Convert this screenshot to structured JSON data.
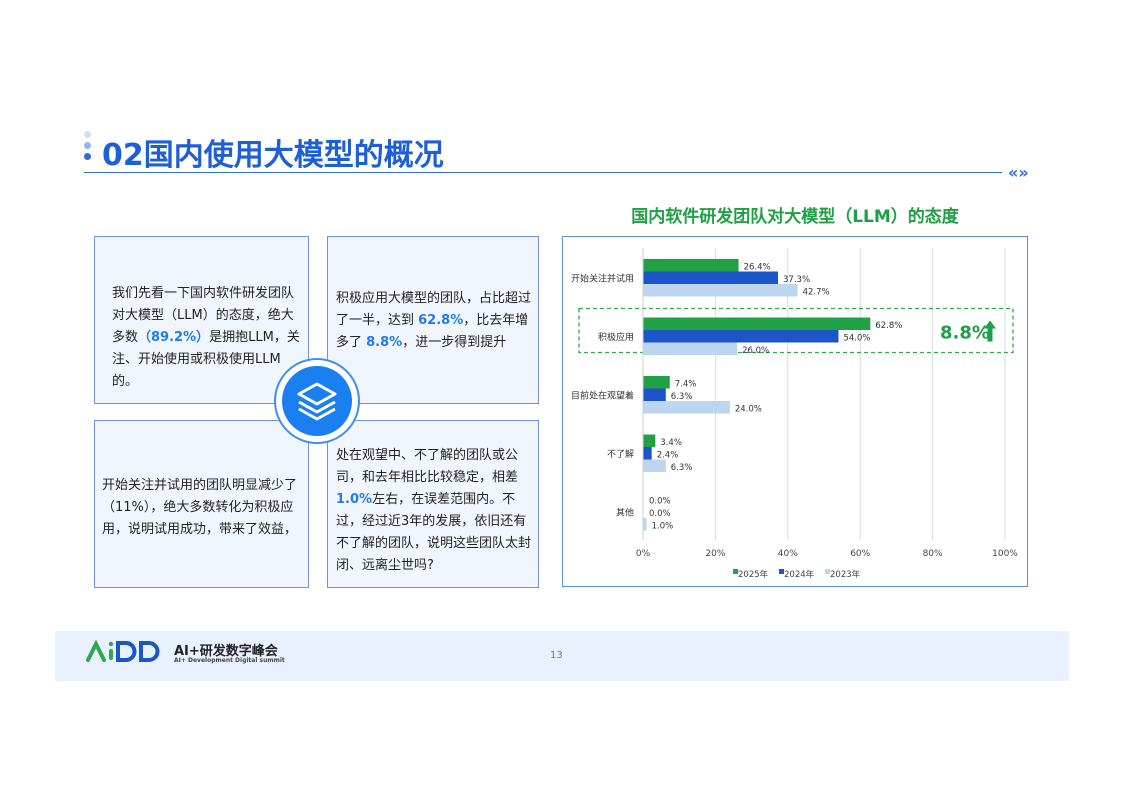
{
  "header": {
    "title": "02国内使用大模型的概况",
    "nav_icon": "double-chevron-icon"
  },
  "boxes": {
    "top_left": {
      "pre": "我们先看一下国内软件研发团队对大模型（LLM）的态度，绝大多数",
      "highlight": "（89.2%）",
      "post": "是拥抱LLM，关注、开始使用或积极使用LLM的。"
    },
    "top_right": {
      "pre": "积极应用大模型的团队，占比超过了一半，达到 ",
      "h1": "62.8%",
      "mid": "，比去年增多了 ",
      "h2": "8.8%",
      "post": "，进一步得到提升"
    },
    "bottom_left": {
      "text": "开始关注并试用的团队明显减少了（11%），绝大多数转化为积极应用，说明试用成功，带来了效益，"
    },
    "bottom_right": {
      "pre": "处在观望中、不了解的团队或公司，和去年相比比较稳定，相差",
      "highlight": "1.0%",
      "post": "左右，在误差范围内。不过，经过近3年的发展，依旧还有不了解的团队，说明这些团队太封闭、远离尘世吗?"
    },
    "center_icon": "layers-icon"
  },
  "chart_data": {
    "type": "bar",
    "orientation": "horizontal",
    "title": "国内软件研发团队对大模型（LLM）的态度",
    "categories": [
      "开始关注并试用",
      "积极应用",
      "目前处在观望着",
      "不了解",
      "其他"
    ],
    "series": [
      {
        "name": "2025年",
        "color": "#22a045",
        "values": [
          26.4,
          62.8,
          7.4,
          3.4,
          0.0
        ]
      },
      {
        "name": "2024年",
        "color": "#1b55c8",
        "values": [
          37.3,
          54.0,
          6.3,
          2.4,
          0.0
        ]
      },
      {
        "name": "2023年",
        "color": "#bdd5ee",
        "values": [
          42.7,
          26.0,
          24.0,
          6.3,
          1.0
        ]
      }
    ],
    "xlim": [
      0,
      100
    ],
    "xticks": [
      "0%",
      "20%",
      "40%",
      "60%",
      "80%",
      "100%"
    ],
    "grid": true,
    "legend": "bottom",
    "annotation": {
      "text": "8.8%",
      "icon": "arrow-up-icon",
      "color": "#1fa045",
      "target": "积极应用"
    }
  },
  "footer": {
    "logo": "AiDD",
    "brand": "AI+研发数字峰会",
    "brand_en": "AI+ Development Digital summit",
    "page": "13"
  }
}
